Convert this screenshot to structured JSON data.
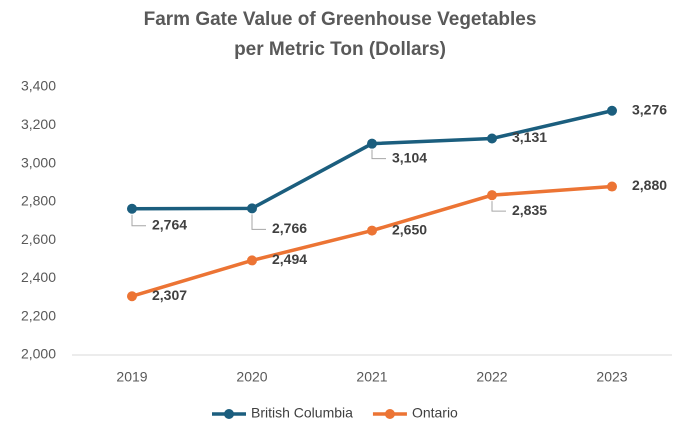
{
  "chart_data": {
    "type": "line",
    "title": [
      "Farm Gate Value of Greenhouse Vegetables",
      "per Metric Ton (Dollars)"
    ],
    "categories": [
      "2019",
      "2020",
      "2021",
      "2022",
      "2023"
    ],
    "series": [
      {
        "name": "British Columbia",
        "color": "#1b5e7e",
        "values": [
          2764,
          2766,
          3104,
          3131,
          3276
        ],
        "value_labels": [
          "2,764",
          "2,766",
          "3,104",
          "3,131",
          "3,276"
        ]
      },
      {
        "name": "Ontario",
        "color": "#ec7434",
        "values": [
          2307,
          2494,
          2650,
          2835,
          2880
        ],
        "value_labels": [
          "2,307",
          "2,494",
          "2,650",
          "2,835",
          "2,880"
        ]
      }
    ],
    "ylim": [
      2000,
      3400
    ],
    "yticks": [
      {
        "value": 2000,
        "label": "2,000"
      },
      {
        "value": 2200,
        "label": "2,200"
      },
      {
        "value": 2400,
        "label": "2,400"
      },
      {
        "value": 2600,
        "label": "2,600"
      },
      {
        "value": 2800,
        "label": "2,800"
      },
      {
        "value": 3000,
        "label": "3,000"
      },
      {
        "value": 3200,
        "label": "3,200"
      },
      {
        "value": 3400,
        "label": "3,400"
      }
    ],
    "grid": false,
    "legend": "bottom"
  }
}
